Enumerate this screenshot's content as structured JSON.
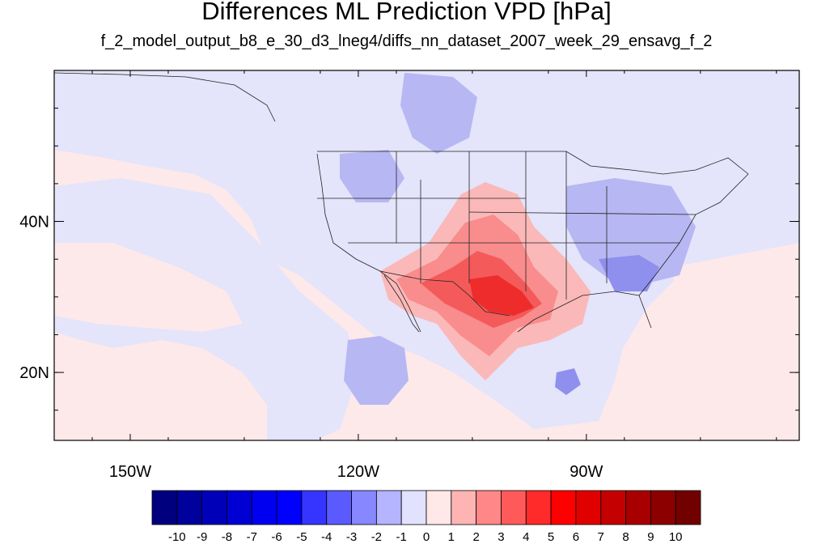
{
  "map": {
    "title": "Differences ML Prediction VPD [hPa]",
    "subtitle": "f_2_model_output_b8_e_30_d3_lneg4/diffs_nn_dataset_2007_week_29_ensavg_f_2",
    "lon_range": [
      -160,
      -62
    ],
    "lat_range": [
      11,
      60
    ],
    "lat_ticks": [
      {
        "lat": 40,
        "label": "40N"
      },
      {
        "lat": 20,
        "label": "20N"
      }
    ],
    "lon_ticks": [
      {
        "lon": -150,
        "label": "150W"
      },
      {
        "lon": -120,
        "label": "120W"
      },
      {
        "lon": -90,
        "label": "90W"
      }
    ]
  },
  "colorbar": {
    "labels": [
      "-10",
      "-9",
      "-8",
      "-7",
      "-6",
      "-5",
      "-4",
      "-3",
      "-2",
      "-1",
      "0",
      "1",
      "2",
      "3",
      "4",
      "5",
      "6",
      "7",
      "8",
      "9",
      "10"
    ],
    "colors": [
      "#00007f",
      "#00009c",
      "#0000b8",
      "#0000d4",
      "#0000f0",
      "#0000ff",
      "#3535ff",
      "#5a5aff",
      "#8787ff",
      "#b4b4ff",
      "#e2e2ff",
      "#ffe8e8",
      "#ffb4b4",
      "#ff8787",
      "#ff5a5a",
      "#ff2a2a",
      "#ff0000",
      "#e00000",
      "#c40000",
      "#a80000",
      "#8c0000",
      "#720000"
    ]
  },
  "colors": {
    "ocean_bg": "#fde9ea",
    "neutral_neg": "#e4e4fb",
    "light_blue": "#b7b7f3",
    "mid_blue": "#8f8fee",
    "light_red": "#fbb8b8",
    "mid_red": "#f98c8c",
    "red": "#f45a5a",
    "deep_red": "#ee2c2c"
  }
}
